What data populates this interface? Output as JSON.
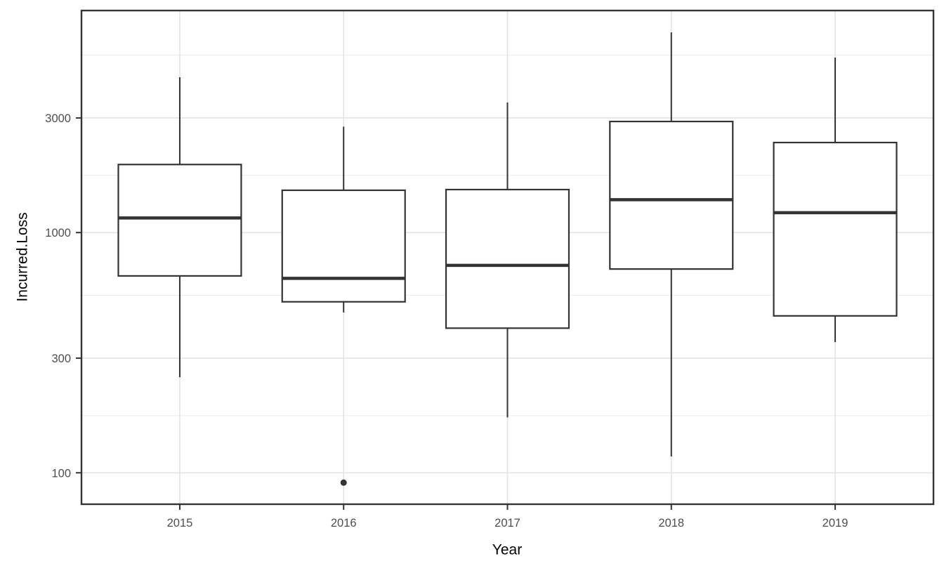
{
  "chart_data": {
    "type": "boxplot",
    "title": "",
    "xlabel": "Year",
    "ylabel": "Incurred.Loss",
    "y_scale": "log10",
    "ylim": [
      74,
      8400
    ],
    "y_ticks": [
      100,
      300,
      1000,
      3000
    ],
    "y_tick_labels": [
      "100",
      "300",
      "1000",
      "3000"
    ],
    "y_minor_ticks": [
      173,
      548,
      1732,
      5477
    ],
    "categories": [
      "2015",
      "2016",
      "2017",
      "2018",
      "2019"
    ],
    "series": [
      {
        "category": "2015",
        "min": 250,
        "q1": 660,
        "median": 1150,
        "q3": 1920,
        "max": 4430,
        "outliers": []
      },
      {
        "category": "2016",
        "min": 465,
        "q1": 515,
        "median": 645,
        "q3": 1500,
        "max": 2760,
        "outliers": [
          91
        ]
      },
      {
        "category": "2017",
        "min": 170,
        "q1": 400,
        "median": 730,
        "q3": 1510,
        "max": 3480,
        "outliers": []
      },
      {
        "category": "2018",
        "min": 117,
        "q1": 705,
        "median": 1370,
        "q3": 2900,
        "max": 6810,
        "outliers": []
      },
      {
        "category": "2019",
        "min": 350,
        "q1": 450,
        "median": 1210,
        "q3": 2370,
        "max": 5350,
        "outliers": []
      }
    ],
    "grid": true,
    "legend": false
  },
  "colors": {
    "background": "#ffffff",
    "panel_border": "#333333",
    "box_stroke": "#333333",
    "box_fill": "#ffffff",
    "grid_major": "#e3e3e3",
    "grid_minor": "#ebebeb",
    "tick_mark": "#333333",
    "tick_label": "#4d4d4d",
    "axis_title": "#000000",
    "outlier": "#333333"
  }
}
